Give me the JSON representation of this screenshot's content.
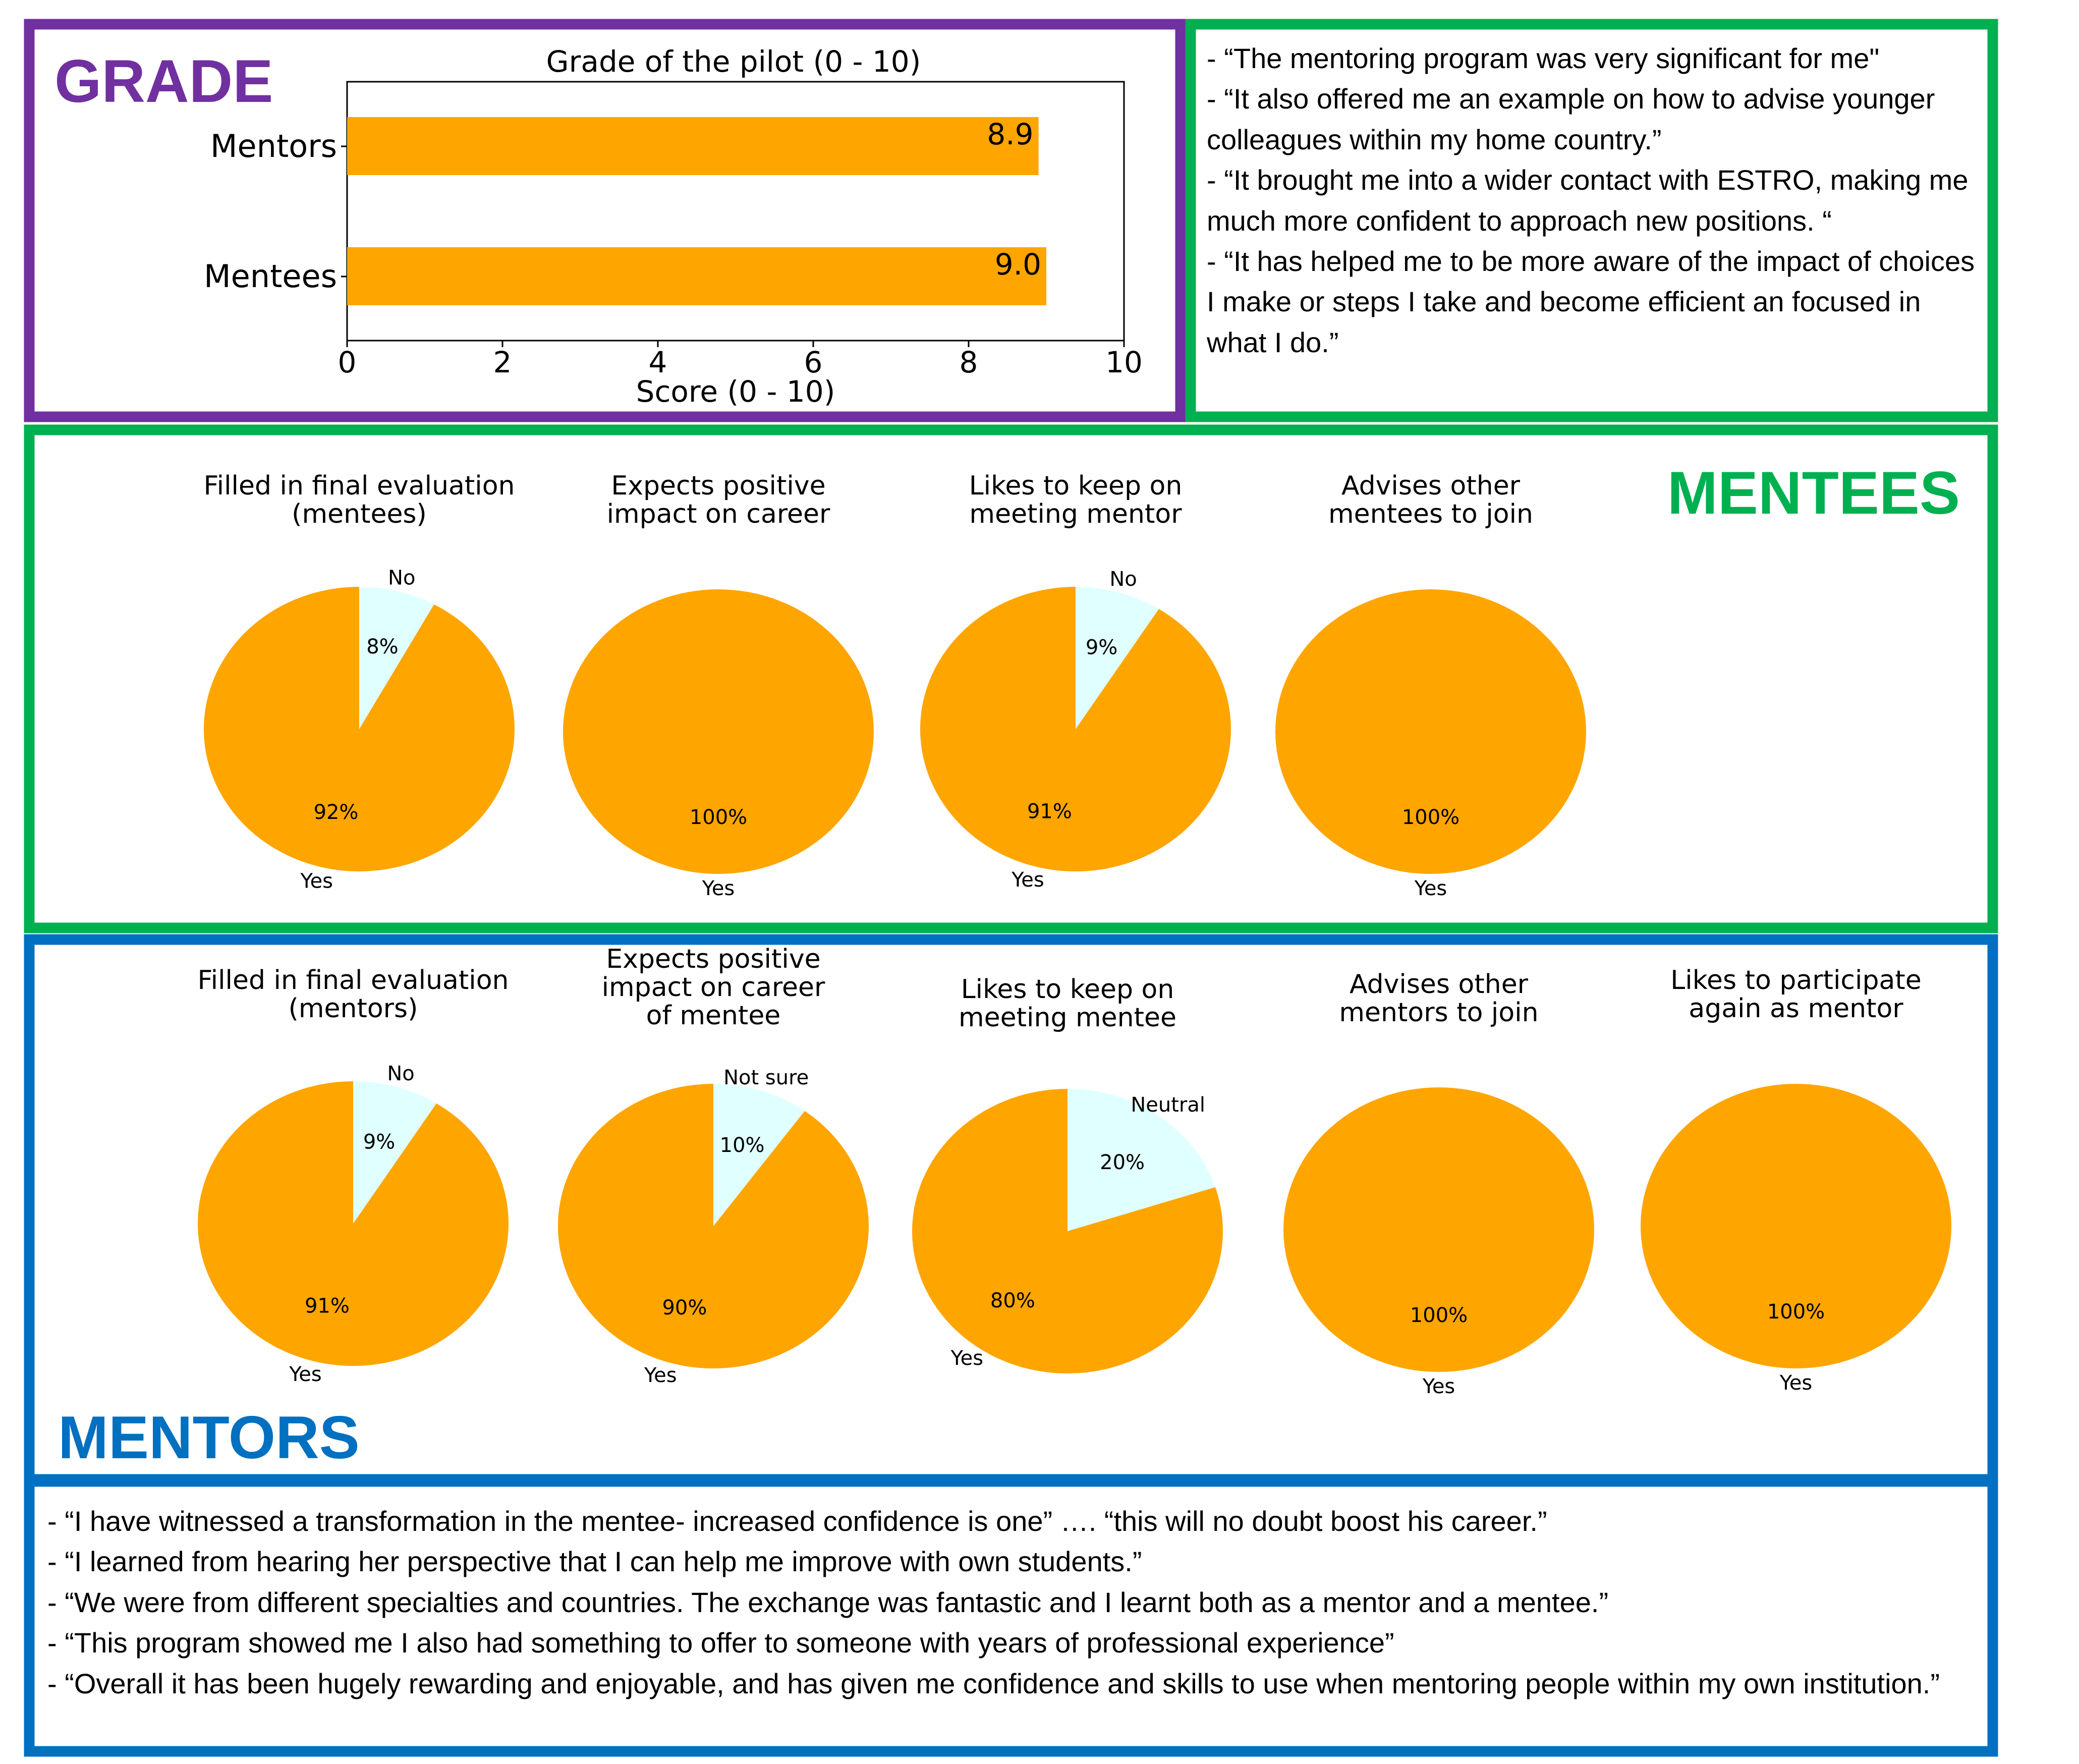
{
  "colors": {
    "grade_border": "#7030A0",
    "mentees_border": "#00B050",
    "mentors_border": "#0070C0",
    "orange": "#FFA500",
    "light_cyan": "#E0FFFF"
  },
  "grade": {
    "title": "GRADE"
  },
  "mentees_section": {
    "title": "MENTEES",
    "quotes": [
      "- “The mentoring program was very significant for me\"",
      "- “It also offered me an example on how to advise younger colleagues within my home country.”",
      "- “It brought me into a wider contact with ESTRO, making me much more confident to approach new positions. “",
      "- “It has helped me to be more aware of the impact of choices I make or steps I take and become efficient an focused in what I do.”"
    ]
  },
  "mentors_section": {
    "title": "MENTORS",
    "quotes": [
      "- “I have witnessed a transformation in the mentee- increased confidence is one” …. “this will no doubt boost his career.”",
      "- “I learned from hearing her perspective that I can help me improve with own students.”",
      "- “We were from different specialties and countries. The exchange was fantastic and I learnt both as a mentor and a mentee.”",
      "- “This program showed me I also had something to offer to someone with years of professional experience”",
      "- “Overall it has been hugely rewarding and enjoyable, and has given me confidence and skills to use when mentoring people within my own institution.”"
    ]
  },
  "chart_data": [
    {
      "type": "bar",
      "orientation": "horizontal",
      "title": "Grade of the pilot (0 - 10)",
      "xlabel": "Score (0 - 10)",
      "ylabel": "",
      "categories": [
        "Mentors",
        "Mentees"
      ],
      "values": [
        8.9,
        9.0
      ],
      "value_labels": [
        "8.9",
        "9.0"
      ],
      "xlim": [
        0,
        10
      ],
      "xticks": [
        "0",
        "2",
        "4",
        "6",
        "8",
        "10"
      ],
      "grid": false
    },
    {
      "type": "pie",
      "title": "Filled in final evaluation (mentees)",
      "title_lines": [
        "Filled in final evaluation",
        "(mentees)"
      ],
      "slices": [
        {
          "label": "No",
          "value": 8,
          "pct_label": "8%"
        },
        {
          "label": "Yes",
          "value": 92,
          "pct_label": "92%"
        }
      ]
    },
    {
      "type": "pie",
      "title": "Expects positive impact on career",
      "title_lines": [
        "Expects positive",
        "impact on career"
      ],
      "slices": [
        {
          "label": "Yes",
          "value": 100,
          "pct_label": "100%"
        }
      ]
    },
    {
      "type": "pie",
      "title": "Likes to keep on meeting mentor",
      "title_lines": [
        "Likes to keep on",
        "meeting mentor"
      ],
      "slices": [
        {
          "label": "No",
          "value": 9,
          "pct_label": "9%"
        },
        {
          "label": "Yes",
          "value": 91,
          "pct_label": "91%"
        }
      ]
    },
    {
      "type": "pie",
      "title": "Advises other mentees to join",
      "title_lines": [
        "Advises other",
        "mentees to join"
      ],
      "slices": [
        {
          "label": "Yes",
          "value": 100,
          "pct_label": "100%"
        }
      ]
    },
    {
      "type": "pie",
      "title": "Filled in final evaluation (mentors)",
      "title_lines": [
        "Filled in final evaluation",
        "(mentors)"
      ],
      "slices": [
        {
          "label": "No",
          "value": 9,
          "pct_label": "9%"
        },
        {
          "label": "Yes",
          "value": 91,
          "pct_label": "91%"
        }
      ]
    },
    {
      "type": "pie",
      "title": "Expects positive impact on career of mentee",
      "title_lines": [
        "Expects positive",
        "impact on career",
        "of mentee"
      ],
      "slices": [
        {
          "label": "Not sure",
          "value": 10,
          "pct_label": "10%"
        },
        {
          "label": "Yes",
          "value": 90,
          "pct_label": "90%"
        }
      ]
    },
    {
      "type": "pie",
      "title": "Likes to keep on meeting mentee",
      "title_lines": [
        "Likes to keep on",
        "meeting mentee"
      ],
      "slices": [
        {
          "label": "Neutral",
          "value": 20,
          "pct_label": "20%"
        },
        {
          "label": "Yes",
          "value": 80,
          "pct_label": "80%"
        }
      ]
    },
    {
      "type": "pie",
      "title": "Advises other mentors to join",
      "title_lines": [
        "Advises other",
        "mentors to join"
      ],
      "slices": [
        {
          "label": "Yes",
          "value": 100,
          "pct_label": "100%"
        }
      ]
    },
    {
      "type": "pie",
      "title": "Likes to participate again as mentor",
      "title_lines": [
        "Likes to participate",
        "again as mentor"
      ],
      "slices": [
        {
          "label": "Yes",
          "value": 100,
          "pct_label": "100%"
        }
      ]
    }
  ]
}
